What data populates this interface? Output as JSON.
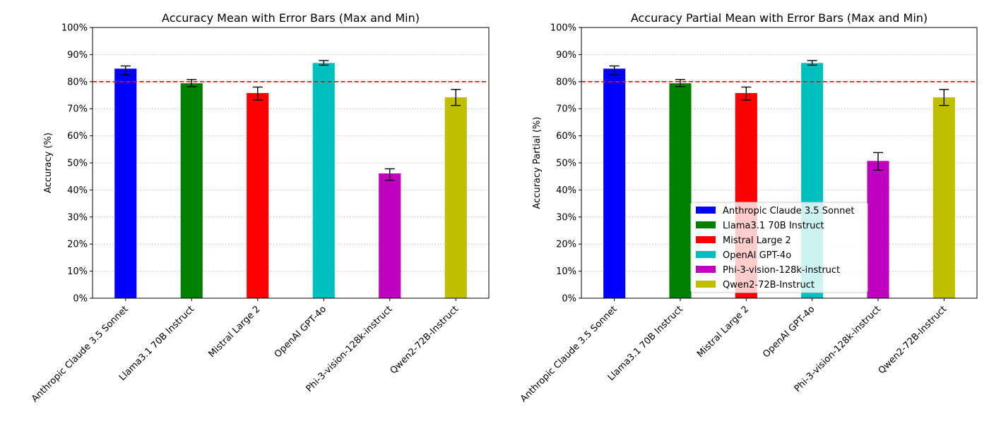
{
  "chart_data": [
    {
      "type": "bar",
      "title": "Accuracy Mean with Error Bars (Max and Min)",
      "xlabel": "",
      "ylabel": "Accuracy (%)",
      "ylim": [
        0,
        100
      ],
      "yticks": [
        0,
        10,
        20,
        30,
        40,
        50,
        60,
        70,
        80,
        90,
        100
      ],
      "ytick_labels": [
        "0%",
        "10%",
        "20%",
        "30%",
        "40%",
        "50%",
        "60%",
        "70%",
        "80%",
        "90%",
        "100%"
      ],
      "grid": "horizontal dotted",
      "reference_line": {
        "y": 80,
        "style": "dashed",
        "color": "#ff0000"
      },
      "categories": [
        "Anthropic Claude 3.5 Sonnet",
        "Llama3.1 70B Instruct",
        "Mistral Large 2",
        "OpenAI GPT-4o",
        "Phi-3-vision-128k-instruct",
        "Qwen2-72B-Instruct"
      ],
      "colors": [
        "#0000ff",
        "#008000",
        "#ff0000",
        "#00bfbf",
        "#bf00bf",
        "#bfbf00"
      ],
      "values": [
        84.8,
        79.4,
        75.8,
        86.9,
        46.1,
        74.2
      ],
      "err_min": [
        82.5,
        78.2,
        73.2,
        86.1,
        43.6,
        71.2
      ],
      "err_max": [
        85.8,
        80.8,
        78.0,
        87.8,
        47.8,
        77.1
      ],
      "legend": null
    },
    {
      "type": "bar",
      "title": "Accuracy Partial Mean with Error Bars (Max and Min)",
      "xlabel": "",
      "ylabel": "Accuracy Partial (%)",
      "ylim": [
        0,
        100
      ],
      "yticks": [
        0,
        10,
        20,
        30,
        40,
        50,
        60,
        70,
        80,
        90,
        100
      ],
      "ytick_labels": [
        "0%",
        "10%",
        "20%",
        "30%",
        "40%",
        "50%",
        "60%",
        "70%",
        "80%",
        "90%",
        "100%"
      ],
      "grid": "horizontal dotted",
      "reference_line": {
        "y": 80,
        "style": "dashed",
        "color": "#ff0000"
      },
      "categories": [
        "Anthropic Claude 3.5 Sonnet",
        "Llama3.1 70B Instruct",
        "Mistral Large 2",
        "OpenAI GPT-4o",
        "Phi-3-vision-128k-instruct",
        "Qwen2-72B-Instruct"
      ],
      "colors": [
        "#0000ff",
        "#008000",
        "#ff0000",
        "#00bfbf",
        "#bf00bf",
        "#bfbf00"
      ],
      "values": [
        84.8,
        79.4,
        75.8,
        86.9,
        50.7,
        74.2
      ],
      "err_min": [
        82.5,
        78.2,
        73.2,
        86.1,
        47.3,
        71.2
      ],
      "err_max": [
        85.8,
        80.8,
        78.0,
        87.8,
        53.8,
        77.1
      ],
      "legend": {
        "placement": "lower-right",
        "entries": [
          "Anthropic Claude 3.5 Sonnet",
          "Llama3.1 70B Instruct",
          "Mistral Large 2",
          "OpenAI GPT-4o",
          "Phi-3-vision-128k-instruct",
          "Qwen2-72B-Instruct"
        ]
      }
    }
  ]
}
